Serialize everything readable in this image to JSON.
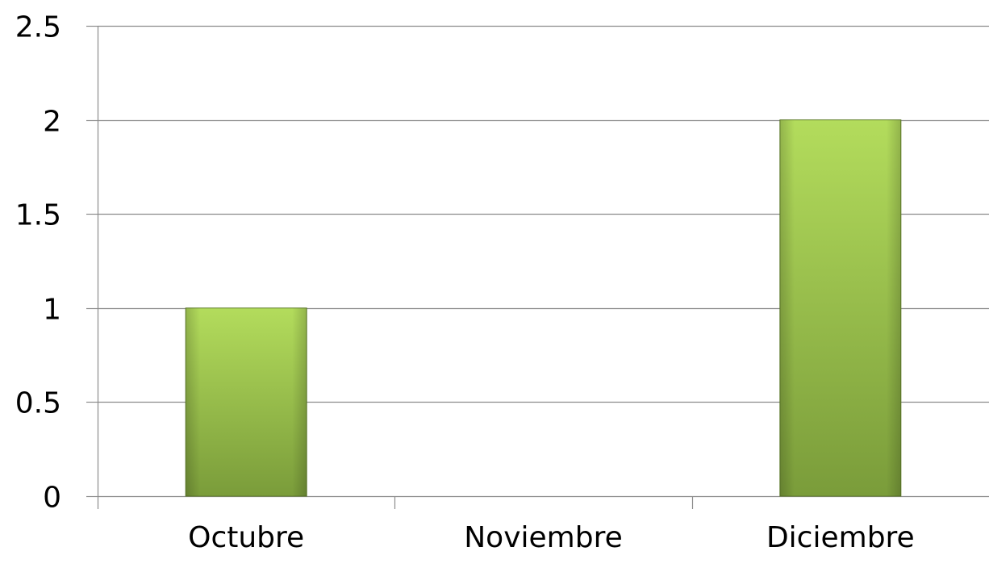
{
  "chart_data": {
    "type": "bar",
    "categories": [
      "Octubre",
      "Noviembre",
      "Diciembre"
    ],
    "values": [
      1,
      0,
      2
    ],
    "title": "",
    "xlabel": "",
    "ylabel": "",
    "ylim": [
      0,
      2.5
    ],
    "yticks": [
      0,
      0.5,
      1,
      1.5,
      2,
      2.5
    ],
    "ytick_labels": [
      "0",
      "0.5",
      "1",
      "1.5",
      "2",
      "2.5"
    ],
    "grid": true,
    "legend": "none",
    "colors": {
      "bar_top": "#b3dc5c",
      "bar_bottom": "#7a9c3a",
      "bar_edge": "#5f7d2a",
      "gridline": "#8c8c8c",
      "axis": "#8c8c8c"
    }
  }
}
